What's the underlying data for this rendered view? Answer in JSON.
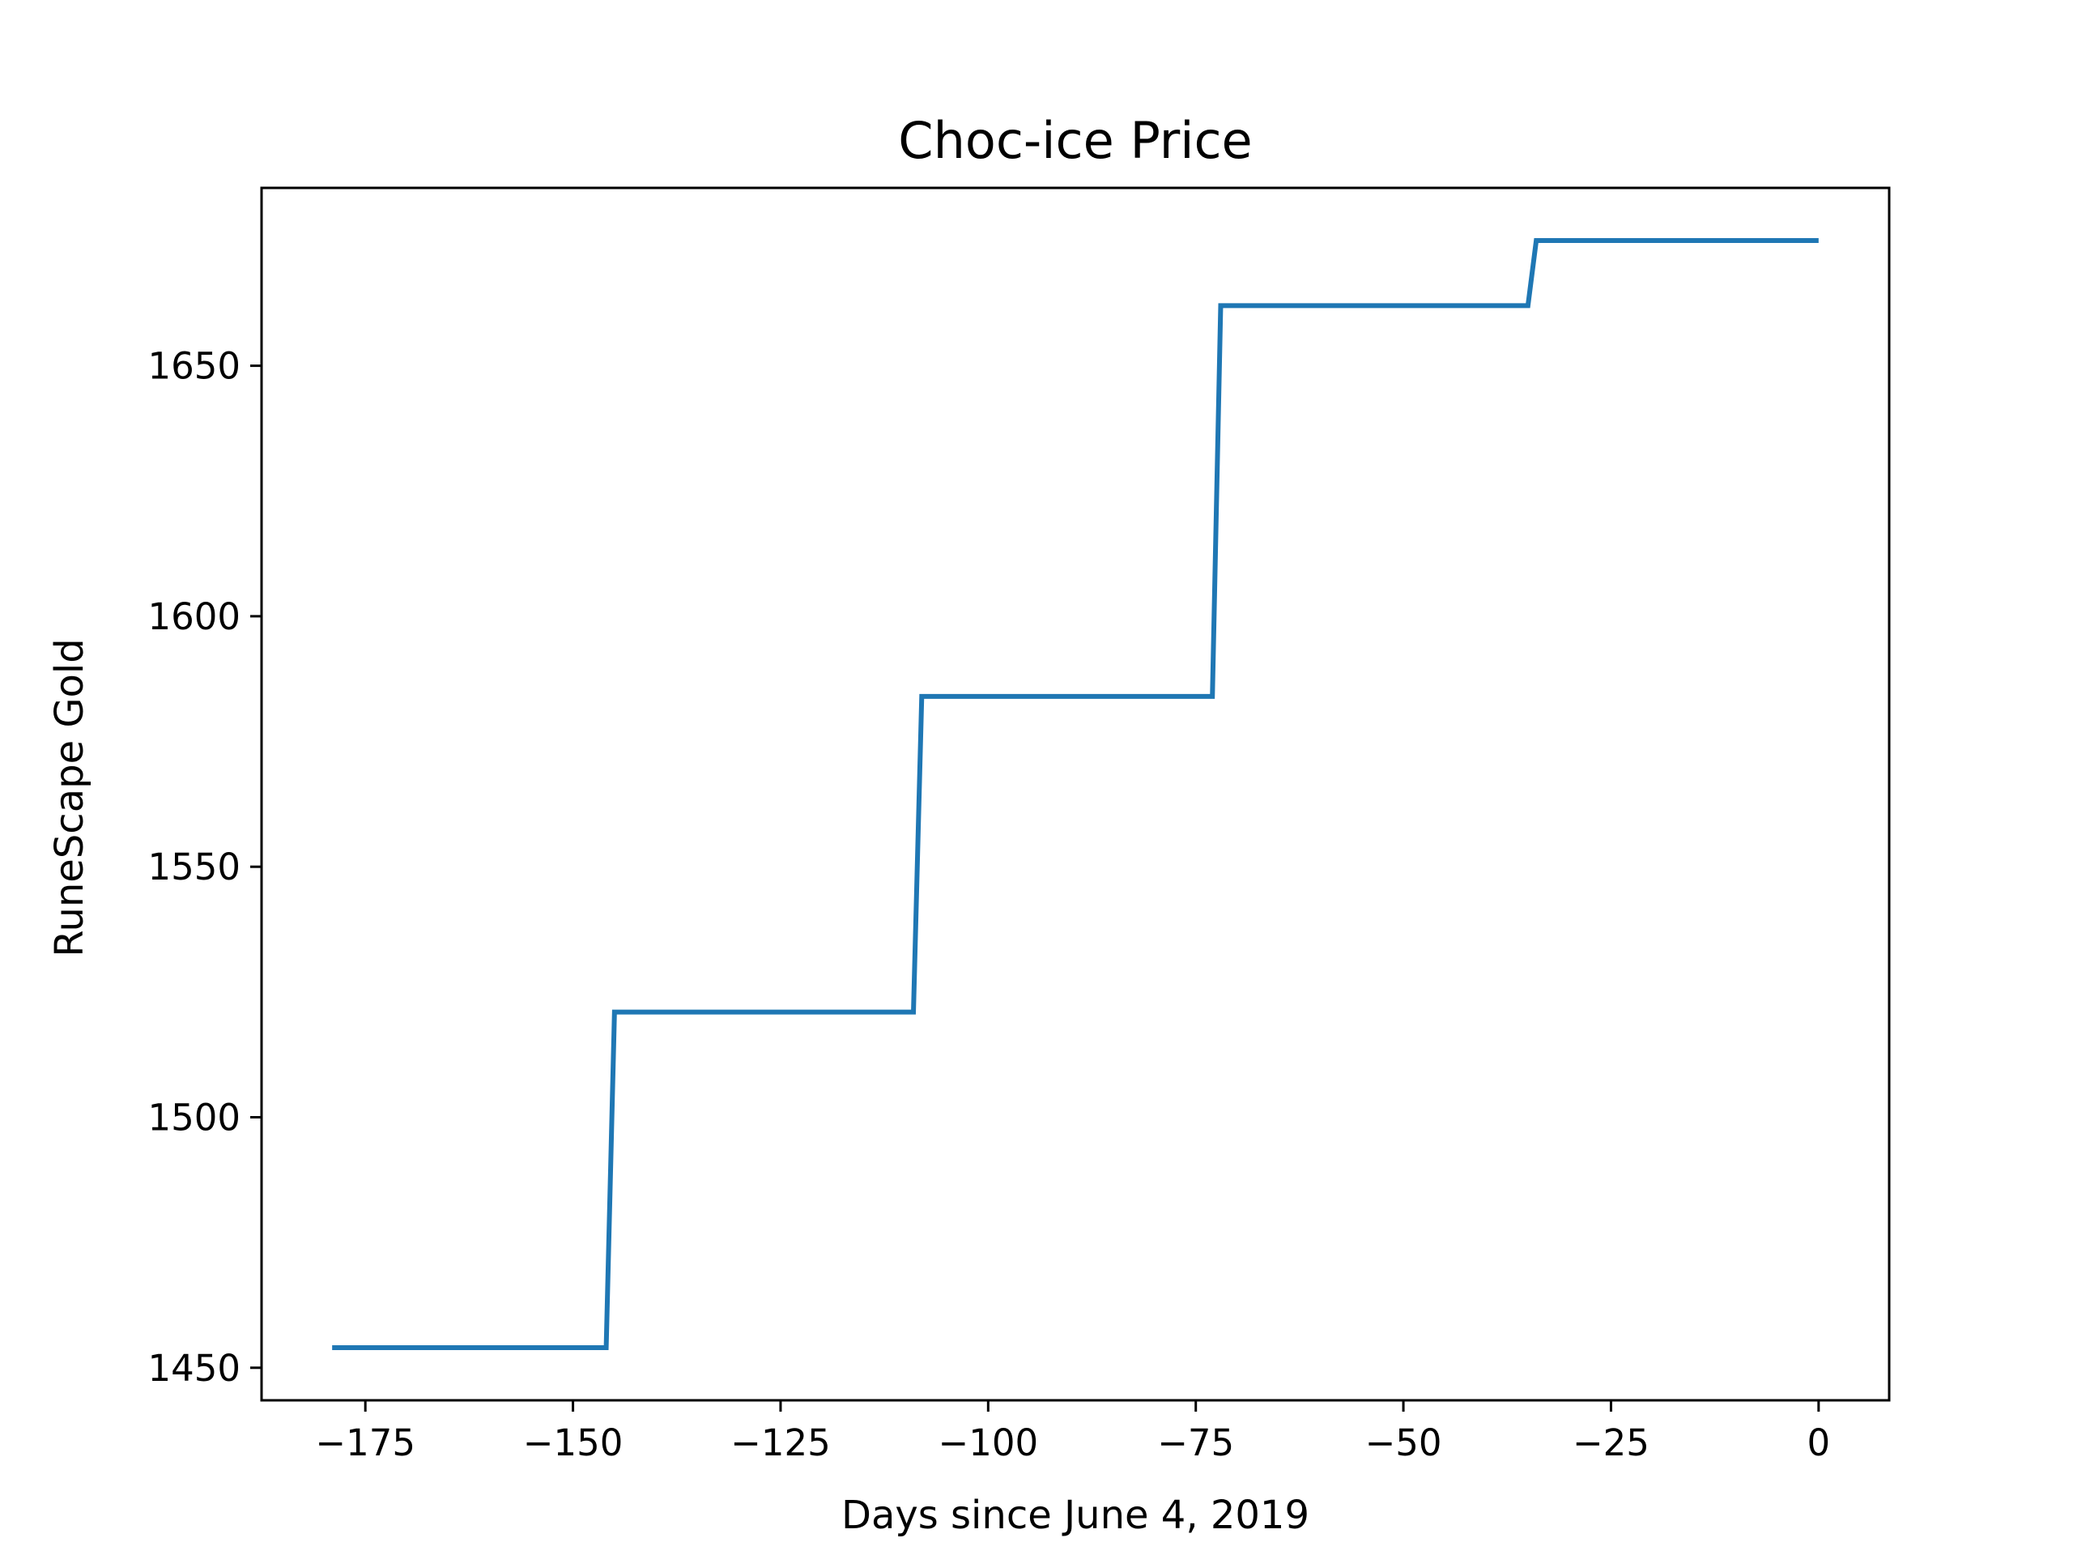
{
  "chart_data": {
    "type": "line",
    "title": "Choc-ice Price",
    "xlabel": "Days since June 4, 2019",
    "ylabel": "RuneScape Gold",
    "xlim": [
      -187.5,
      8.5
    ],
    "ylim": [
      1443.5,
      1685.5
    ],
    "xticks": [
      -175,
      -150,
      -125,
      -100,
      -75,
      -50,
      -25,
      0
    ],
    "xtick_labels": [
      "−175",
      "−150",
      "−125",
      "−100",
      "−75",
      "−50",
      "−25",
      "0"
    ],
    "yticks": [
      1450,
      1500,
      1550,
      1600,
      1650
    ],
    "ytick_labels": [
      "1450",
      "1500",
      "1550",
      "1600",
      "1650"
    ],
    "grid": false,
    "legend": "none",
    "series": [
      {
        "color": "#1f77b4",
        "x": [
          -179,
          -146,
          -145,
          -109,
          -108,
          -73,
          -72,
          -35,
          -34,
          0
        ],
        "y": [
          1454,
          1454,
          1521,
          1521,
          1584,
          1584,
          1662,
          1662,
          1675,
          1675
        ]
      }
    ]
  }
}
